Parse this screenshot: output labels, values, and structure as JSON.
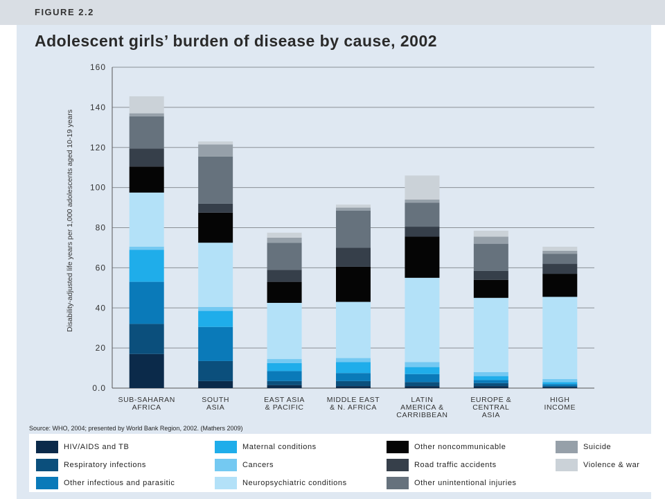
{
  "figure_label": "FIGURE 2.2",
  "source": "Source: WHO, 2004; presented by World Bank Region, 2002. (Mathers 2009)",
  "chart_data": {
    "type": "bar",
    "stacked": true,
    "title": "Adolescent girls’ burden of disease by cause, 2002",
    "ylabel": "Disability-adjusted life years per 1,000 adolescents aged 10-19 years",
    "xlabel": "",
    "ylim": [
      0,
      160
    ],
    "yticks": [
      "0.0",
      "20",
      "40",
      "60",
      "80",
      "100",
      "120",
      "140",
      "160"
    ],
    "grid": true,
    "legend_position": "bottom",
    "categories": [
      [
        "SUB-SAHARAN",
        "AFRICA"
      ],
      [
        "SOUTH",
        "ASIA"
      ],
      [
        "EAST ASIA",
        "& PACIFIC"
      ],
      [
        "MIDDLE EAST",
        "& N. AFRICA"
      ],
      [
        "LATIN",
        "AMERICA &",
        "CARRIBBEAN"
      ],
      [
        "EUROPE &",
        "CENTRAL",
        "ASIA"
      ],
      [
        "HIGH",
        "INCOME"
      ]
    ],
    "series": [
      {
        "name": "HIV/AIDS and TB",
        "color": "#0b2a4a",
        "values": [
          17,
          3.5,
          1.5,
          1,
          1,
          1,
          0.5
        ]
      },
      {
        "name": "Respiratory infections",
        "color": "#0b4f7c",
        "values": [
          15,
          10,
          2,
          2.5,
          2,
          1.5,
          0.5
        ]
      },
      {
        "name": "Other infectious and parasitic",
        "color": "#0a7ab9",
        "values": [
          21,
          17,
          5,
          4,
          4,
          1.5,
          1
        ]
      },
      {
        "name": "Maternal conditions",
        "color": "#1fadea",
        "values": [
          16,
          8,
          4,
          5.5,
          3.5,
          2,
          1
        ]
      },
      {
        "name": "Cancers",
        "color": "#74c9f2",
        "values": [
          1.5,
          2,
          2,
          2,
          2.5,
          2,
          1.5
        ]
      },
      {
        "name": "Neuropsychiatric conditions",
        "color": "#b3e1f8",
        "values": [
          27,
          32,
          28,
          28,
          42,
          37,
          41
        ]
      },
      {
        "name": "Other noncommunicable",
        "color": "#050505",
        "values": [
          13,
          15,
          10.5,
          17.5,
          20.5,
          9,
          11.5
        ]
      },
      {
        "name": "Road traffic accidents",
        "color": "#363f4a",
        "values": [
          9,
          4.5,
          6,
          9.5,
          5,
          4.5,
          5
        ]
      },
      {
        "name": "Other unintentional injuries",
        "color": "#66727d",
        "values": [
          16,
          23.5,
          13.5,
          18.5,
          12,
          13.5,
          5
        ]
      },
      {
        "name": "Suicide",
        "color": "#96a0a9",
        "values": [
          1.5,
          6,
          2.5,
          1.5,
          1.5,
          3.5,
          1.5
        ]
      },
      {
        "name": "Violence & war",
        "color": "#cbd2d8",
        "values": [
          8.5,
          1.5,
          2.5,
          1.5,
          12,
          3,
          2
        ]
      }
    ]
  }
}
